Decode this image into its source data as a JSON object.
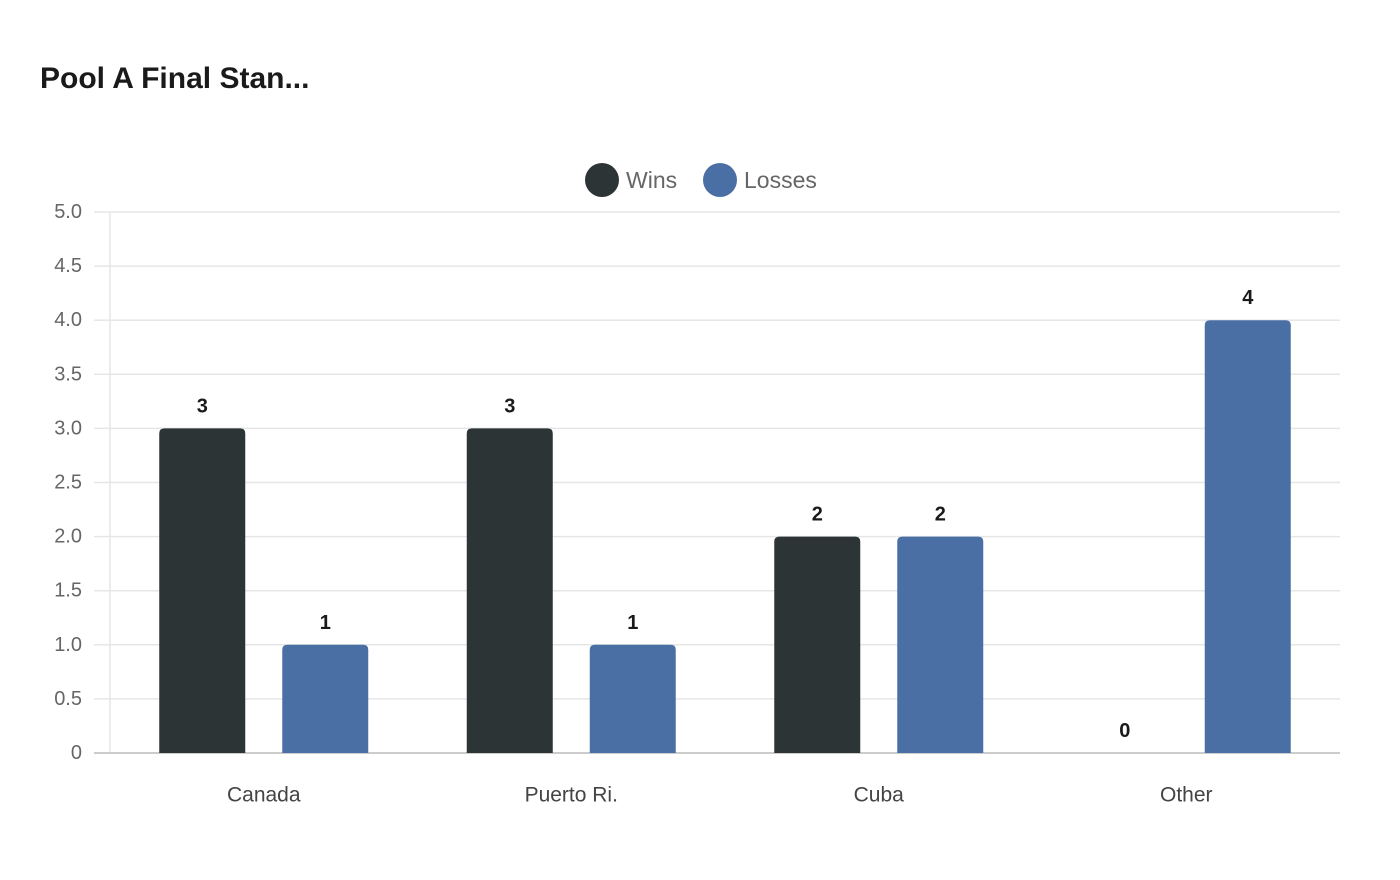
{
  "chart_data": {
    "type": "bar",
    "title": "Pool A Final Stan...",
    "categories": [
      "Canada",
      "Puerto Ri.",
      "Cuba",
      "Other"
    ],
    "series": [
      {
        "name": "Wins",
        "color": "#2d3436",
        "values": [
          3,
          3,
          2,
          0
        ]
      },
      {
        "name": "Losses",
        "color": "#4a6fa5",
        "values": [
          1,
          1,
          2,
          4
        ]
      }
    ],
    "ylim": [
      0,
      5
    ],
    "yticks": [
      0,
      0.5,
      1,
      1.5,
      2,
      2.5,
      3,
      3.5,
      4,
      4.5,
      5
    ],
    "ytick_labels": [
      "0",
      "0.5",
      "1.0",
      "1.5",
      "2.0",
      "2.5",
      "3.0",
      "3.5",
      "4.0",
      "4.5",
      "5.0"
    ],
    "grid": true,
    "legend_position": "top-center",
    "data_labels": true
  }
}
